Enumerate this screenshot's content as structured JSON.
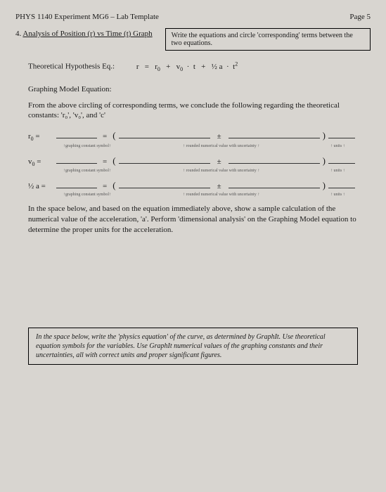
{
  "header": {
    "course": "PHYS 1140 Experiment MG6 – Lab Template",
    "page": "Page 5"
  },
  "section": {
    "number": "4.",
    "title": "Analysis of Position (r) vs Time (t) Graph",
    "instruction": "Write the equations and circle 'corresponding' terms between the two equations."
  },
  "hypothesis": {
    "label": "Theoretical Hypothesis Eq.:",
    "lhs": "r",
    "eq": "=",
    "t1": "r",
    "t1sub": "0",
    "plus1": "+",
    "t2": "v",
    "t2sub": "0",
    "dot1": "·",
    "t3": "t",
    "plus2": "+",
    "t4": "½ a",
    "dot2": "·",
    "t5": "t",
    "t5sup": "2"
  },
  "graphing": {
    "label": "Graphing Model Equation:"
  },
  "conclusion": "From the above circling of corresponding terms, we conclude the following regarding the theoretical constants: 'r₀', 'v₀', and 'c'",
  "rows": [
    {
      "sym": "r",
      "sub": "0"
    },
    {
      "sym": "v",
      "sub": "0"
    },
    {
      "sym": "½ a",
      "sub": ""
    }
  ],
  "hints": {
    "left": "↑graphing constant symbol↑",
    "mid": "↑ rounded numerical value with uncertainty ↑",
    "right": "↑ units ↑"
  },
  "paragraph1": "In the space below, and based on the equation immediately above, show a sample calculation of the numerical value of the acceleration, 'a'. Perform 'dimensional analysis' on the Graphing Model equation to determine the proper units for the acceleration.",
  "bottomBox": "In the space below, write the 'physics equation' of the curve, as determined by GraphIt. Use theoretical equation symbols for the variables. Use GraphIt numerical values of the graphing constants and their uncertainties, all with correct units and proper significant figures.",
  "colors": {
    "bg": "#d8d5d0",
    "text": "#1a1a1a",
    "hint": "#555555",
    "border": "#000000"
  }
}
